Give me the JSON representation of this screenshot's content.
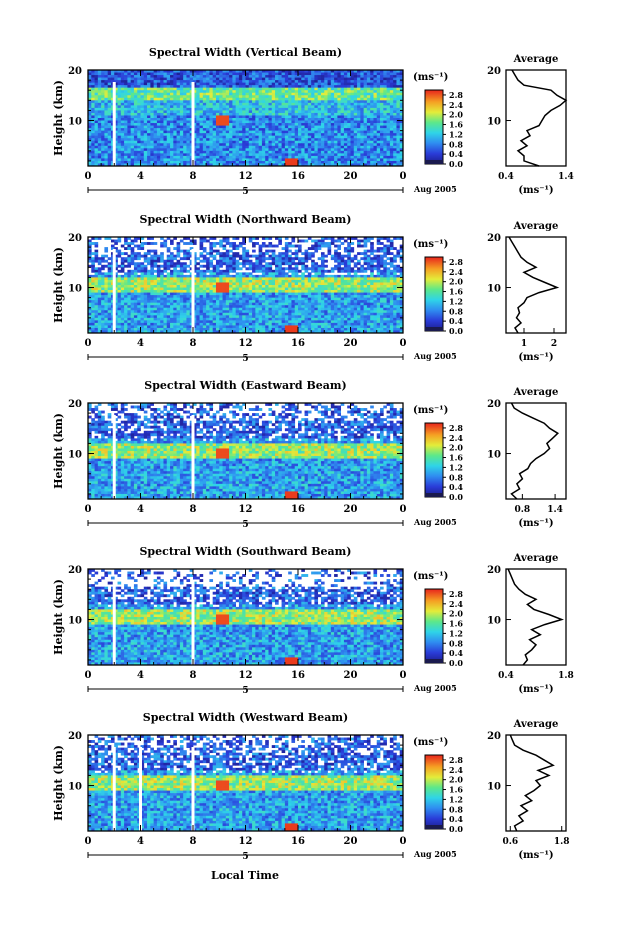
{
  "chart_data": [
    {
      "type": "heatmap",
      "title": "Spectral Width (Vertical Beam)",
      "ylabel": "Height (km)",
      "xlabel": "",
      "x_ticks": [
        "0",
        "4",
        "8",
        "12",
        "16",
        "20",
        "0"
      ],
      "y_ticks": [
        "10",
        "20"
      ],
      "xlim": [
        0,
        24
      ],
      "ylim": [
        1,
        20
      ],
      "date_label": "Aug 2005",
      "day_label": "5",
      "colorbar": {
        "unit": "(ms⁻¹)",
        "ticks": [
          "0.0",
          "0.4",
          "0.8",
          "1.2",
          "1.6",
          "2.0",
          "2.4",
          "2.8"
        ],
        "range": [
          0,
          3.0
        ]
      },
      "gaps_hours": [
        2.0,
        8.0
      ],
      "profile": {
        "title": "Average",
        "xlabel": "(ms⁻¹)",
        "x_ticks": [
          "0.4",
          "1.4"
        ],
        "xlim": [
          0.4,
          1.4
        ],
        "y_ticks": [
          "10",
          "20"
        ],
        "ylim": [
          1,
          20
        ],
        "heights": [
          1,
          2,
          3,
          4,
          5,
          6,
          7,
          8,
          9,
          10,
          11,
          12,
          13,
          14,
          15,
          16,
          17,
          18,
          19,
          20
        ],
        "values": [
          0.95,
          0.7,
          0.7,
          0.6,
          0.75,
          0.65,
          0.8,
          0.75,
          0.95,
          1.0,
          1.05,
          1.15,
          1.3,
          1.4,
          1.25,
          1.15,
          0.7,
          0.6,
          0.55,
          0.5
        ]
      }
    },
    {
      "type": "heatmap",
      "title": "Spectral Width (Northward Beam)",
      "ylabel": "Height (km)",
      "xlabel": "",
      "x_ticks": [
        "0",
        "4",
        "8",
        "12",
        "16",
        "20",
        "0"
      ],
      "y_ticks": [
        "10",
        "20"
      ],
      "xlim": [
        0,
        24
      ],
      "ylim": [
        1,
        20
      ],
      "date_label": "Aug 2005",
      "day_label": "5",
      "colorbar": {
        "unit": "(ms⁻¹)",
        "ticks": [
          "0.0",
          "0.4",
          "0.8",
          "1.2",
          "1.6",
          "2.0",
          "2.4",
          "2.8"
        ],
        "range": [
          0,
          3.0
        ]
      },
      "gaps_hours": [
        2.0,
        8.0
      ],
      "profile": {
        "title": "Average",
        "xlabel": "(ms⁻¹)",
        "x_ticks": [
          "1",
          "2"
        ],
        "xlim": [
          0.4,
          2.4
        ],
        "y_ticks": [
          "10",
          "20"
        ],
        "ylim": [
          1,
          20
        ],
        "heights": [
          1,
          2,
          3,
          4,
          5,
          6,
          7,
          8,
          9,
          10,
          11,
          12,
          13,
          14,
          15,
          16,
          17,
          18,
          19,
          20
        ],
        "values": [
          0.8,
          0.7,
          0.9,
          0.75,
          0.85,
          0.8,
          1.0,
          1.1,
          1.5,
          2.1,
          1.7,
          1.3,
          1.0,
          1.4,
          1.1,
          0.9,
          0.8,
          0.7,
          0.6,
          0.5
        ]
      }
    },
    {
      "type": "heatmap",
      "title": "Spectral Width (Eastward Beam)",
      "ylabel": "Height (km)",
      "xlabel": "",
      "x_ticks": [
        "0",
        "4",
        "8",
        "12",
        "16",
        "20",
        "0"
      ],
      "y_ticks": [
        "10",
        "20"
      ],
      "xlim": [
        0,
        24
      ],
      "ylim": [
        1,
        20
      ],
      "date_label": "Aug 2005",
      "day_label": "5",
      "colorbar": {
        "unit": "(ms⁻¹)",
        "ticks": [
          "0.0",
          "0.4",
          "0.8",
          "1.2",
          "1.6",
          "2.0",
          "2.4",
          "2.8"
        ],
        "range": [
          0,
          3.0
        ]
      },
      "gaps_hours": [
        2.0,
        8.0
      ],
      "profile": {
        "title": "Average",
        "xlabel": "(ms⁻¹)",
        "x_ticks": [
          "0.8",
          "1.4"
        ],
        "xlim": [
          0.5,
          1.6
        ],
        "y_ticks": [
          "10",
          "20"
        ],
        "ylim": [
          1,
          20
        ],
        "heights": [
          1,
          2,
          3,
          4,
          5,
          6,
          7,
          8,
          9,
          10,
          11,
          12,
          13,
          14,
          15,
          16,
          17,
          18,
          19,
          20
        ],
        "values": [
          0.7,
          0.6,
          0.75,
          0.7,
          0.8,
          0.75,
          0.9,
          0.95,
          1.05,
          1.2,
          1.3,
          1.25,
          1.35,
          1.45,
          1.3,
          1.2,
          1.0,
          0.8,
          0.65,
          0.6
        ]
      }
    },
    {
      "type": "heatmap",
      "title": "Spectral Width (Southward Beam)",
      "ylabel": "Height (km)",
      "xlabel": "",
      "x_ticks": [
        "0",
        "4",
        "8",
        "12",
        "16",
        "20",
        "0"
      ],
      "y_ticks": [
        "10",
        "20"
      ],
      "xlim": [
        0,
        24
      ],
      "ylim": [
        1,
        20
      ],
      "date_label": "Aug 2005",
      "day_label": "5",
      "colorbar": {
        "unit": "(ms⁻¹)",
        "ticks": [
          "0.0",
          "0.4",
          "0.8",
          "1.2",
          "1.6",
          "2.0",
          "2.4",
          "2.8"
        ],
        "range": [
          0,
          3.0
        ]
      },
      "gaps_hours": [
        2.0,
        8.0
      ],
      "profile": {
        "title": "Average",
        "xlabel": "(ms⁻¹)",
        "x_ticks": [
          "0.4",
          "1.8"
        ],
        "xlim": [
          0.4,
          1.8
        ],
        "y_ticks": [
          "10",
          "20"
        ],
        "ylim": [
          1,
          20
        ],
        "heights": [
          1,
          2,
          3,
          4,
          5,
          6,
          7,
          8,
          9,
          10,
          11,
          12,
          13,
          14,
          15,
          16,
          17,
          18,
          19,
          20
        ],
        "values": [
          0.8,
          0.9,
          0.85,
          1.0,
          1.1,
          0.95,
          1.2,
          1.0,
          1.3,
          1.7,
          1.4,
          1.05,
          0.9,
          1.1,
          0.85,
          0.7,
          0.6,
          0.55,
          0.5,
          0.45
        ]
      }
    },
    {
      "type": "heatmap",
      "title": "Spectral Width (Westward Beam)",
      "ylabel": "Height (km)",
      "xlabel": "Local Time",
      "x_ticks": [
        "0",
        "4",
        "8",
        "12",
        "16",
        "20",
        "0"
      ],
      "y_ticks": [
        "10",
        "20"
      ],
      "xlim": [
        0,
        24
      ],
      "ylim": [
        1,
        20
      ],
      "date_label": "Aug 2005",
      "day_label": "5",
      "colorbar": {
        "unit": "(ms⁻¹)",
        "ticks": [
          "0.0",
          "0.4",
          "0.8",
          "1.2",
          "1.6",
          "2.0",
          "2.4",
          "2.8"
        ],
        "range": [
          0,
          3.0
        ]
      },
      "gaps_hours": [
        2.0,
        8.0,
        4.0
      ],
      "profile": {
        "title": "Average",
        "xlabel": "(ms⁻¹)",
        "x_ticks": [
          "0.6",
          "1.8"
        ],
        "xlim": [
          0.5,
          1.9
        ],
        "y_ticks": [
          "10",
          "20"
        ],
        "ylim": [
          1,
          20
        ],
        "heights": [
          1,
          2,
          3,
          4,
          5,
          6,
          7,
          8,
          9,
          10,
          11,
          12,
          13,
          14,
          15,
          16,
          17,
          18,
          19,
          20
        ],
        "values": [
          0.75,
          0.7,
          0.9,
          0.8,
          1.0,
          0.85,
          1.1,
          0.95,
          1.15,
          1.3,
          1.2,
          1.5,
          1.25,
          1.6,
          1.4,
          1.2,
          0.9,
          0.7,
          0.65,
          0.6
        ]
      }
    }
  ]
}
